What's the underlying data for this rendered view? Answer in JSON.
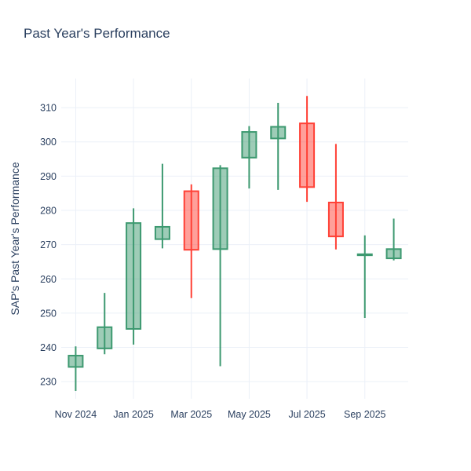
{
  "title": "Past Year's Performance",
  "chart_data": {
    "type": "candlestick",
    "title": "Past Year's Performance",
    "xlabel": "",
    "ylabel": "SAP's Past Year's Performance",
    "x": [
      "Nov 2024",
      "Dec 2024",
      "Jan 2025",
      "Feb 2025",
      "Mar 2025",
      "Apr 2025",
      "May 2025",
      "Jun 2025",
      "Jul 2025",
      "Aug 2025",
      "Sep 2025",
      "Oct 2025"
    ],
    "open": [
      234.3,
      239.7,
      245.4,
      271.6,
      285.6,
      268.7,
      295.4,
      301.0,
      305.4,
      282.3,
      266.9,
      266.0
    ],
    "high": [
      240.3,
      255.9,
      280.6,
      293.6,
      287.6,
      293.2,
      304.6,
      311.4,
      313.4,
      299.4,
      272.7,
      277.6
    ],
    "low": [
      227.3,
      238.0,
      240.8,
      268.9,
      254.4,
      234.5,
      286.4,
      286.0,
      282.5,
      268.6,
      248.6,
      265.4
    ],
    "close": [
      237.6,
      245.9,
      276.3,
      275.2,
      268.5,
      292.3,
      302.9,
      304.4,
      286.8,
      272.4,
      267.2,
      268.7
    ],
    "yticks": [
      230,
      240,
      250,
      260,
      270,
      280,
      290,
      300,
      310
    ],
    "xtick_labels": [
      "Nov 2024",
      "Jan 2025",
      "Mar 2025",
      "May 2025",
      "Jul 2025",
      "Sep 2025"
    ],
    "xtick_every": 2,
    "ylim": [
      225,
      318.5
    ],
    "grid": true,
    "legend": "none",
    "colors": {
      "increasing": "#3D9970",
      "decreasing": "#FF4136",
      "grid": "#EBF0F8",
      "text": "#2A3F5F",
      "background": "#FFFFFF"
    }
  }
}
